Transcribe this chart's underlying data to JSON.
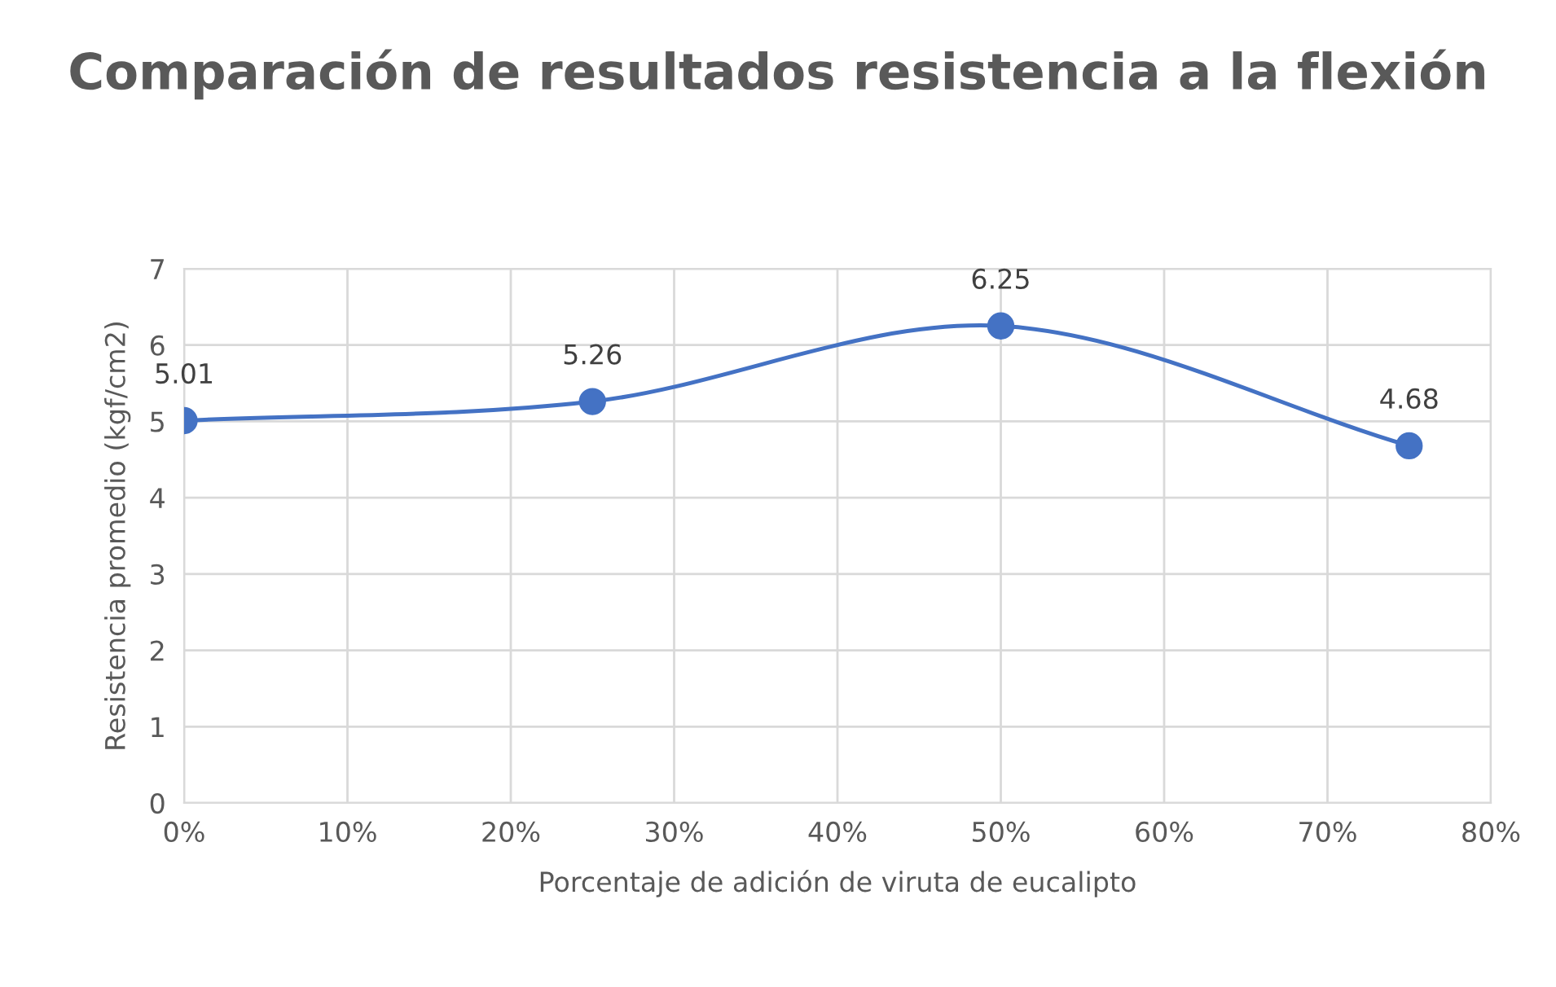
{
  "chart_data": {
    "type": "line",
    "title": "Comparación de resultados resistencia a la flexión",
    "xlabel": "Porcentaje de adición de viruta de eucalipto",
    "ylabel": "Resistencia promedio (kgf/cm2)",
    "x": [
      0,
      25,
      50,
      75
    ],
    "series": [
      {
        "color": "#4472c4",
        "values": [
          5.01,
          5.26,
          6.25,
          4.68
        ]
      }
    ],
    "xlim": [
      0,
      80
    ],
    "xticks": [
      {
        "value": 0,
        "label": "0%"
      },
      {
        "value": 10,
        "label": "10%"
      },
      {
        "value": 20,
        "label": "20%"
      },
      {
        "value": 30,
        "label": "30%"
      },
      {
        "value": 40,
        "label": "40%"
      },
      {
        "value": 50,
        "label": "50%"
      },
      {
        "value": 60,
        "label": "60%"
      },
      {
        "value": 70,
        "label": "70%"
      },
      {
        "value": 80,
        "label": "80%"
      }
    ],
    "ylim": [
      0,
      7
    ],
    "yticks": [
      0,
      1,
      2,
      3,
      4,
      5,
      6,
      7
    ],
    "grid": true,
    "marker": "circle",
    "line_style": "solid",
    "data_labels": true,
    "legend": false
  }
}
